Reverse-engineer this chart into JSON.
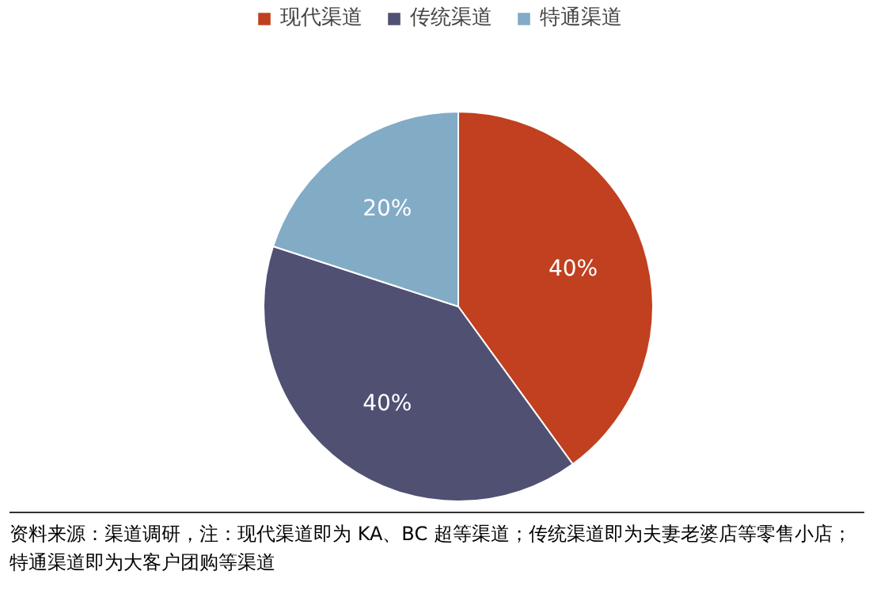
{
  "chart_data": {
    "type": "pie",
    "categories": [
      "现代渠道",
      "传统渠道",
      "特通渠道"
    ],
    "values": [
      40,
      40,
      20
    ],
    "colors": [
      "#c0401f",
      "#4f5072",
      "#82abc6"
    ],
    "value_labels": [
      "40%",
      "40%",
      "20%"
    ],
    "legend": "top",
    "annotations": [
      "资料来源：渠道调研，注：现代渠道即为 KA、BC 超等渠道；传统渠道即为夫妻老婆店等零售小店；特通渠道即为大客户团购等渠道"
    ]
  }
}
